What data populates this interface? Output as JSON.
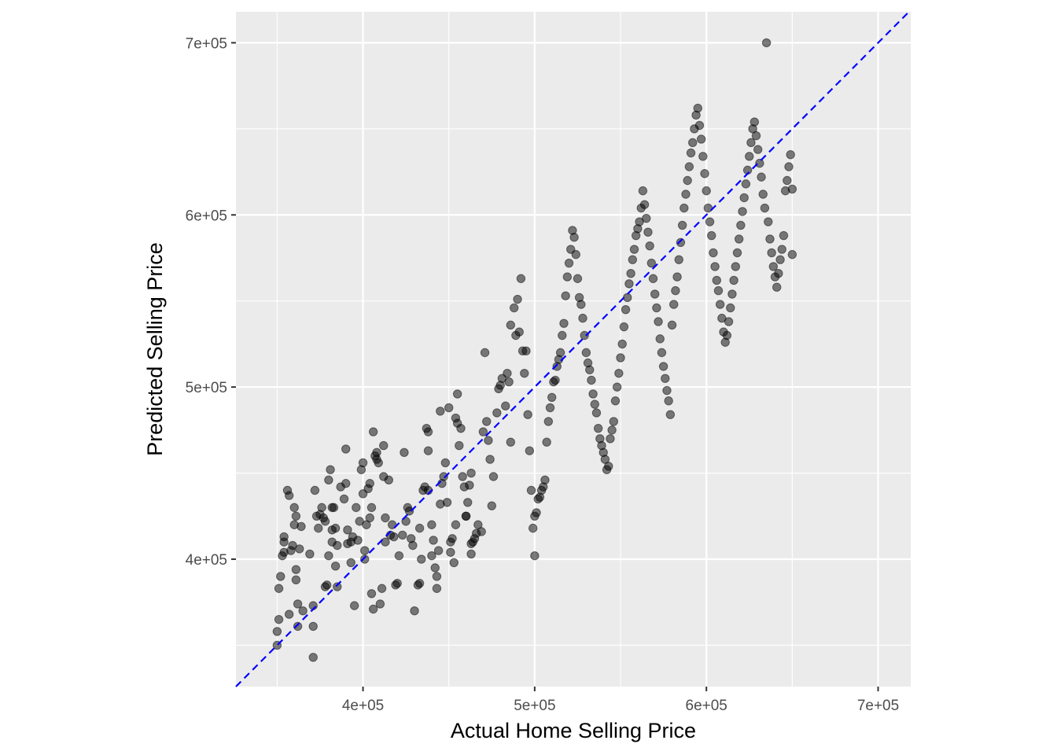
{
  "chart_data": {
    "type": "scatter",
    "title": "",
    "xlabel": "Actual Home Selling Price",
    "ylabel": "Predicted Selling Price",
    "xlim": [
      326000,
      719000
    ],
    "ylim": [
      326000,
      718000
    ],
    "x_ticks": [
      400000,
      500000,
      600000,
      700000
    ],
    "x_tick_labels": [
      "4e+05",
      "5e+05",
      "6e+05",
      "7e+05"
    ],
    "y_ticks": [
      400000,
      500000,
      600000,
      700000
    ],
    "y_tick_labels": [
      "4e+05",
      "5e+05",
      "6e+05",
      "7e+05"
    ],
    "grid": true,
    "colors": {
      "panel": "#ebebeb",
      "grid": "#ffffff",
      "point": "#000000",
      "reference_line": "#0000ff"
    },
    "reference_line": {
      "intercept": 0,
      "slope": 1,
      "style": "dashed"
    },
    "points": [
      [
        350000,
        350000
      ],
      [
        350000,
        358000
      ],
      [
        351000,
        365000
      ],
      [
        351000,
        383000
      ],
      [
        352000,
        390000
      ],
      [
        353000,
        402000
      ],
      [
        354000,
        404000
      ],
      [
        354000,
        410000
      ],
      [
        354000,
        413000
      ],
      [
        356000,
        440000
      ],
      [
        357000,
        437000
      ],
      [
        357000,
        368000
      ],
      [
        358000,
        405000
      ],
      [
        359000,
        408000
      ],
      [
        360000,
        420000
      ],
      [
        360000,
        430000
      ],
      [
        361000,
        425000
      ],
      [
        361000,
        394000
      ],
      [
        361000,
        388000
      ],
      [
        362000,
        374000
      ],
      [
        362000,
        361000
      ],
      [
        363000,
        406000
      ],
      [
        364000,
        419000
      ],
      [
        365000,
        370000
      ],
      [
        369000,
        403000
      ],
      [
        371000,
        343000
      ],
      [
        371000,
        361000
      ],
      [
        371000,
        373000
      ],
      [
        372000,
        440000
      ],
      [
        373000,
        425000
      ],
      [
        374000,
        418000
      ],
      [
        375000,
        426000
      ],
      [
        376000,
        430000
      ],
      [
        377000,
        424000
      ],
      [
        378000,
        422000
      ],
      [
        378000,
        384000
      ],
      [
        379000,
        385000
      ],
      [
        380000,
        402000
      ],
      [
        380000,
        446000
      ],
      [
        381000,
        452000
      ],
      [
        382000,
        430000
      ],
      [
        382000,
        417000
      ],
      [
        382000,
        410000
      ],
      [
        383000,
        430000
      ],
      [
        384000,
        418000
      ],
      [
        384000,
        396000
      ],
      [
        385000,
        408000
      ],
      [
        385000,
        384000
      ],
      [
        387000,
        442000
      ],
      [
        389000,
        435000
      ],
      [
        390000,
        464000
      ],
      [
        390000,
        444000
      ],
      [
        391000,
        417000
      ],
      [
        391000,
        409000
      ],
      [
        393000,
        410000
      ],
      [
        393000,
        398000
      ],
      [
        394000,
        413000
      ],
      [
        395000,
        373000
      ],
      [
        396000,
        430000
      ],
      [
        397000,
        411000
      ],
      [
        398000,
        422000
      ],
      [
        399000,
        452000
      ],
      [
        400000,
        456000
      ],
      [
        400000,
        438000
      ],
      [
        401000,
        405000
      ],
      [
        401000,
        400000
      ],
      [
        402000,
        420000
      ],
      [
        403000,
        441000
      ],
      [
        404000,
        444000
      ],
      [
        404000,
        424000
      ],
      [
        405000,
        430000
      ],
      [
        405000,
        380000
      ],
      [
        406000,
        371000
      ],
      [
        406000,
        474000
      ],
      [
        407000,
        460000
      ],
      [
        408000,
        458000
      ],
      [
        408000,
        462000
      ],
      [
        409000,
        456000
      ],
      [
        410000,
        374000
      ],
      [
        411000,
        383000
      ],
      [
        412000,
        466000
      ],
      [
        412000,
        448000
      ],
      [
        413000,
        424000
      ],
      [
        413000,
        410000
      ],
      [
        415000,
        446000
      ],
      [
        416000,
        414000
      ],
      [
        417000,
        420000
      ],
      [
        418000,
        413000
      ],
      [
        419000,
        385000
      ],
      [
        420000,
        386000
      ],
      [
        421000,
        402000
      ],
      [
        423000,
        414000
      ],
      [
        424000,
        462000
      ],
      [
        425000,
        422000
      ],
      [
        426000,
        430000
      ],
      [
        427000,
        428000
      ],
      [
        428000,
        412000
      ],
      [
        429000,
        408000
      ],
      [
        430000,
        370000
      ],
      [
        432000,
        385000
      ],
      [
        433000,
        386000
      ],
      [
        433000,
        418000
      ],
      [
        434000,
        400000
      ],
      [
        435000,
        440000
      ],
      [
        436000,
        442000
      ],
      [
        437000,
        476000
      ],
      [
        438000,
        463000
      ],
      [
        438000,
        440000
      ],
      [
        438000,
        474000
      ],
      [
        440000,
        420000
      ],
      [
        440000,
        402000
      ],
      [
        441000,
        411000
      ],
      [
        442000,
        395000
      ],
      [
        443000,
        390000
      ],
      [
        443000,
        383000
      ],
      [
        444000,
        405000
      ],
      [
        445000,
        432000
      ],
      [
        445000,
        486000
      ],
      [
        446000,
        444000
      ],
      [
        447000,
        448000
      ],
      [
        448000,
        456000
      ],
      [
        449000,
        433000
      ],
      [
        450000,
        488000
      ],
      [
        451000,
        404000
      ],
      [
        451000,
        410000
      ],
      [
        452000,
        412000
      ],
      [
        453000,
        398000
      ],
      [
        454000,
        420000
      ],
      [
        454000,
        482000
      ],
      [
        455000,
        479000
      ],
      [
        455000,
        496000
      ],
      [
        456000,
        466000
      ],
      [
        457000,
        476000
      ],
      [
        458000,
        448000
      ],
      [
        459000,
        442000
      ],
      [
        460000,
        425000
      ],
      [
        460000,
        425000
      ],
      [
        461000,
        433000
      ],
      [
        462000,
        443000
      ],
      [
        463000,
        450000
      ],
      [
        463000,
        409000
      ],
      [
        463000,
        403000
      ],
      [
        464000,
        410000
      ],
      [
        465000,
        412000
      ],
      [
        466000,
        415000
      ],
      [
        467000,
        420000
      ],
      [
        469000,
        416000
      ],
      [
        470000,
        474000
      ],
      [
        471000,
        520000
      ],
      [
        472000,
        480000
      ],
      [
        473000,
        469000
      ],
      [
        474000,
        458000
      ],
      [
        475000,
        431000
      ],
      [
        476000,
        448000
      ],
      [
        478000,
        485000
      ],
      [
        479000,
        499000
      ],
      [
        480000,
        501000
      ],
      [
        481000,
        505000
      ],
      [
        483000,
        489000
      ],
      [
        484000,
        508000
      ],
      [
        485000,
        503000
      ],
      [
        486000,
        536000
      ],
      [
        486000,
        468000
      ],
      [
        488000,
        546000
      ],
      [
        489000,
        530000
      ],
      [
        490000,
        551000
      ],
      [
        491000,
        532000
      ],
      [
        492000,
        563000
      ],
      [
        493000,
        521000
      ],
      [
        494000,
        508000
      ],
      [
        495000,
        521000
      ],
      [
        496000,
        484000
      ],
      [
        497000,
        463000
      ],
      [
        498000,
        440000
      ],
      [
        499000,
        418000
      ],
      [
        500000,
        402000
      ],
      [
        500000,
        425000
      ],
      [
        501000,
        427000
      ],
      [
        502000,
        435000
      ],
      [
        503000,
        436000
      ],
      [
        504000,
        440000
      ],
      [
        505000,
        442000
      ],
      [
        506000,
        446000
      ],
      [
        507000,
        468000
      ],
      [
        508000,
        480000
      ],
      [
        509000,
        488000
      ],
      [
        510000,
        494000
      ],
      [
        511000,
        503000
      ],
      [
        512000,
        504000
      ],
      [
        513000,
        512000
      ],
      [
        514000,
        516000
      ],
      [
        515000,
        520000
      ],
      [
        516000,
        530000
      ],
      [
        517000,
        537000
      ],
      [
        518000,
        553000
      ],
      [
        519000,
        564000
      ],
      [
        520000,
        572000
      ],
      [
        521000,
        580000
      ],
      [
        522000,
        591000
      ],
      [
        523000,
        587000
      ],
      [
        524000,
        577000
      ],
      [
        525000,
        563000
      ],
      [
        526000,
        552000
      ],
      [
        527000,
        548000
      ],
      [
        528000,
        540000
      ],
      [
        529000,
        530000
      ],
      [
        530000,
        520000
      ],
      [
        531000,
        514000
      ],
      [
        532000,
        510000
      ],
      [
        533000,
        504000
      ],
      [
        534000,
        496000
      ],
      [
        535000,
        490000
      ],
      [
        536000,
        485000
      ],
      [
        537000,
        476000
      ],
      [
        538000,
        470000
      ],
      [
        539000,
        466000
      ],
      [
        540000,
        462000
      ],
      [
        541000,
        458000
      ],
      [
        542000,
        452000
      ],
      [
        543000,
        454000
      ],
      [
        544000,
        470000
      ],
      [
        545000,
        475000
      ],
      [
        546000,
        480000
      ],
      [
        547000,
        492000
      ],
      [
        548000,
        500000
      ],
      [
        549000,
        508000
      ],
      [
        550000,
        517000
      ],
      [
        551000,
        525000
      ],
      [
        552000,
        535000
      ],
      [
        553000,
        545000
      ],
      [
        554000,
        552000
      ],
      [
        555000,
        560000
      ],
      [
        556000,
        566000
      ],
      [
        557000,
        574000
      ],
      [
        558000,
        580000
      ],
      [
        559000,
        588000
      ],
      [
        560000,
        592000
      ],
      [
        561000,
        596000
      ],
      [
        562000,
        604000
      ],
      [
        563000,
        614000
      ],
      [
        564000,
        606000
      ],
      [
        565000,
        598000
      ],
      [
        566000,
        590000
      ],
      [
        567000,
        582000
      ],
      [
        568000,
        572000
      ],
      [
        569000,
        563000
      ],
      [
        570000,
        554000
      ],
      [
        571000,
        546000
      ],
      [
        572000,
        538000
      ],
      [
        573000,
        528000
      ],
      [
        574000,
        520000
      ],
      [
        575000,
        512000
      ],
      [
        576000,
        505000
      ],
      [
        577000,
        498000
      ],
      [
        578000,
        492000
      ],
      [
        579000,
        484000
      ],
      [
        580000,
        536000
      ],
      [
        581000,
        548000
      ],
      [
        582000,
        556000
      ],
      [
        583000,
        564000
      ],
      [
        584000,
        574000
      ],
      [
        585000,
        584000
      ],
      [
        586000,
        594000
      ],
      [
        587000,
        604000
      ],
      [
        588000,
        612000
      ],
      [
        589000,
        620000
      ],
      [
        590000,
        628000
      ],
      [
        591000,
        636000
      ],
      [
        592000,
        642000
      ],
      [
        593000,
        650000
      ],
      [
        594000,
        658000
      ],
      [
        595000,
        662000
      ],
      [
        596000,
        652000
      ],
      [
        597000,
        644000
      ],
      [
        598000,
        634000
      ],
      [
        599000,
        624000
      ],
      [
        600000,
        614000
      ],
      [
        601000,
        604000
      ],
      [
        602000,
        596000
      ],
      [
        603000,
        588000
      ],
      [
        604000,
        578000
      ],
      [
        605000,
        570000
      ],
      [
        606000,
        562000
      ],
      [
        607000,
        556000
      ],
      [
        608000,
        548000
      ],
      [
        609000,
        540000
      ],
      [
        610000,
        532000
      ],
      [
        611000,
        526000
      ],
      [
        612000,
        530000
      ],
      [
        613000,
        538000
      ],
      [
        614000,
        546000
      ],
      [
        615000,
        554000
      ],
      [
        616000,
        562000
      ],
      [
        617000,
        570000
      ],
      [
        618000,
        578000
      ],
      [
        619000,
        586000
      ],
      [
        620000,
        594000
      ],
      [
        621000,
        602000
      ],
      [
        622000,
        610000
      ],
      [
        623000,
        618000
      ],
      [
        624000,
        626000
      ],
      [
        625000,
        634000
      ],
      [
        626000,
        642000
      ],
      [
        627000,
        650000
      ],
      [
        628000,
        654000
      ],
      [
        629000,
        646000
      ],
      [
        630000,
        638000
      ],
      [
        631000,
        630000
      ],
      [
        632000,
        622000
      ],
      [
        633000,
        612000
      ],
      [
        634000,
        604000
      ],
      [
        635000,
        700000
      ],
      [
        636000,
        596000
      ],
      [
        637000,
        586000
      ],
      [
        638000,
        578000
      ],
      [
        639000,
        570000
      ],
      [
        640000,
        564000
      ],
      [
        641000,
        558000
      ],
      [
        642000,
        566000
      ],
      [
        643000,
        574000
      ],
      [
        644000,
        580000
      ],
      [
        645000,
        588000
      ],
      [
        646000,
        614000
      ],
      [
        647000,
        620000
      ],
      [
        648000,
        628000
      ],
      [
        649000,
        635000
      ],
      [
        650000,
        615000
      ],
      [
        650000,
        577000
      ]
    ]
  }
}
